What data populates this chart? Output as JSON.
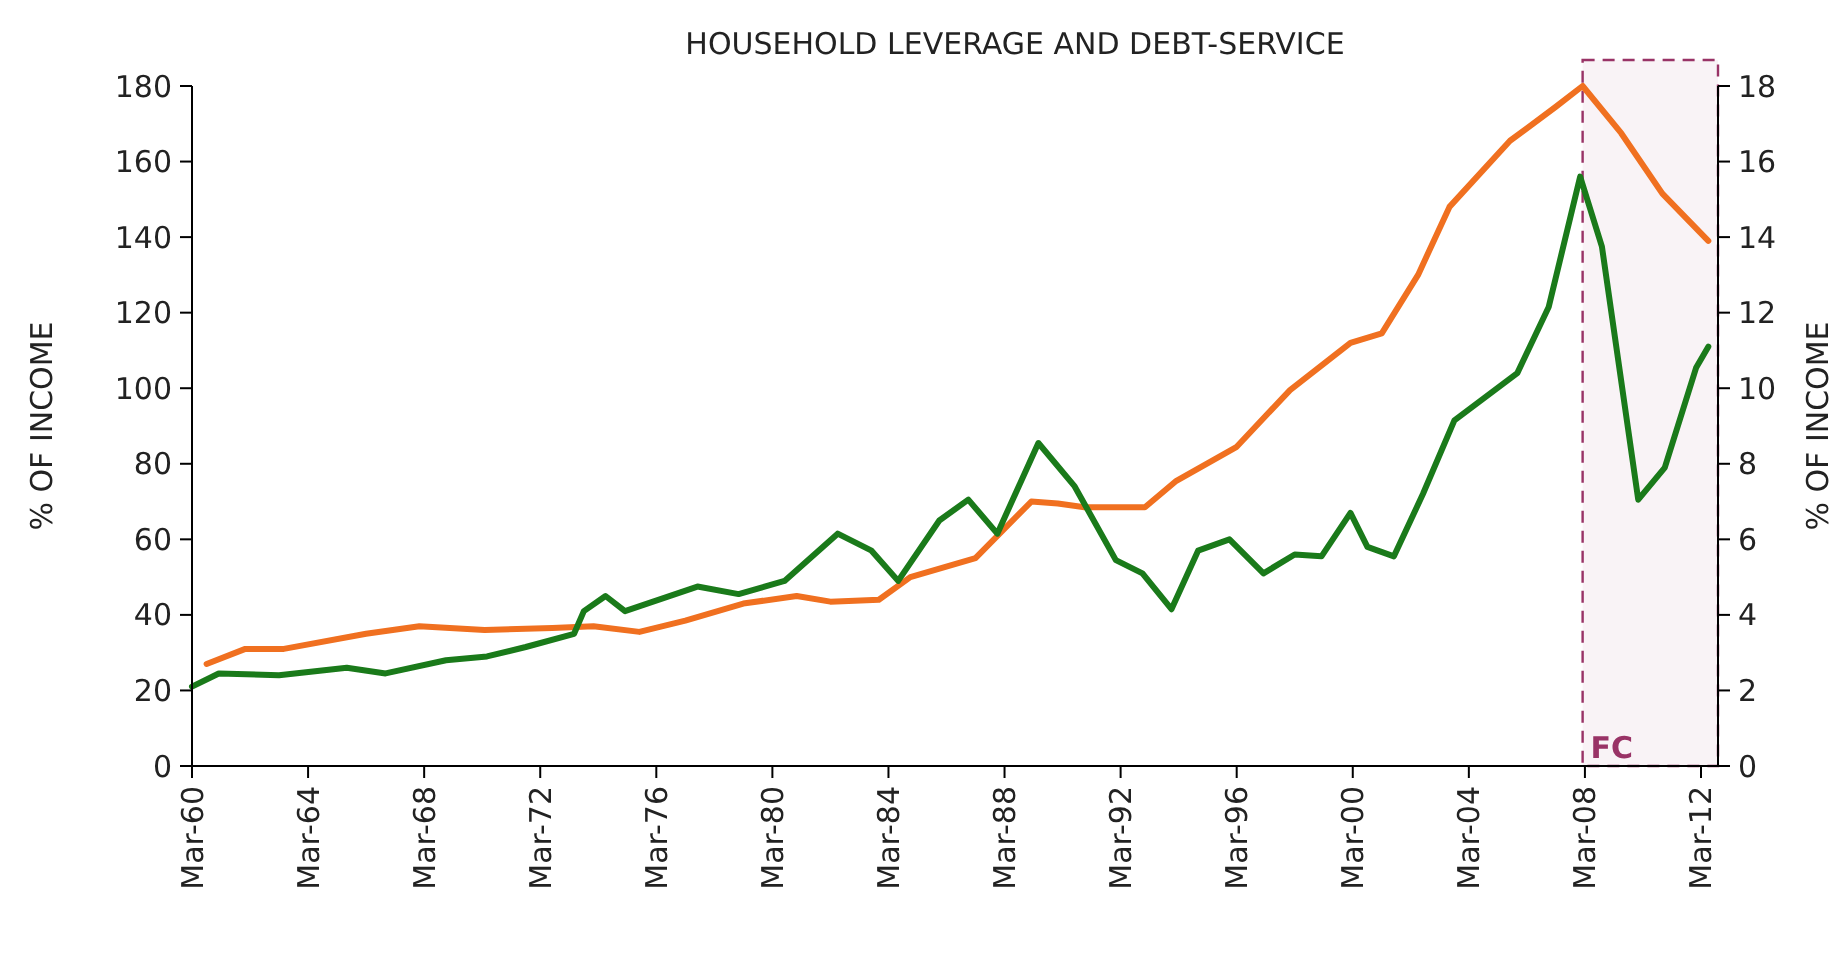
{
  "chart_data": {
    "type": "line",
    "title": "HOUSEHOLD LEVERAGE AND DEBT-SERVICE",
    "ylabel": "% OF INCOME",
    "y2label": "% OF INCOME",
    "xlim": [
      "1960-03",
      "2012-10"
    ],
    "xticks": [
      {
        "value": "1960-03",
        "label": "Mar-60"
      },
      {
        "value": "1964-03",
        "label": "Mar-64"
      },
      {
        "value": "1968-03",
        "label": "Mar-68"
      },
      {
        "value": "1972-03",
        "label": "Mar-72"
      },
      {
        "value": "1976-03",
        "label": "Mar-76"
      },
      {
        "value": "1980-03",
        "label": "Mar-80"
      },
      {
        "value": "1984-03",
        "label": "Mar-84"
      },
      {
        "value": "1988-03",
        "label": "Mar-88"
      },
      {
        "value": "1992-03",
        "label": "Mar-92"
      },
      {
        "value": "1996-03",
        "label": "Mar-96"
      },
      {
        "value": "2000-03",
        "label": "Mar-00"
      },
      {
        "value": "2004-03",
        "label": "Mar-04"
      },
      {
        "value": "2008-03",
        "label": "Mar-08"
      },
      {
        "value": "2012-03",
        "label": "Mar-12"
      }
    ],
    "ylim": [
      0,
      180
    ],
    "yticks": [
      0,
      20,
      40,
      60,
      80,
      100,
      120,
      140,
      160,
      180
    ],
    "y2lim": [
      0,
      18
    ],
    "y2ticks": [
      0,
      2,
      4,
      6,
      8,
      10,
      12,
      14,
      16,
      18
    ],
    "grid": false,
    "line_style": "solid",
    "marker": "none",
    "bands": [
      {
        "axis": "x",
        "from": "2008-02",
        "to": "2012-10",
        "label": "FC",
        "color": "#993366"
      }
    ],
    "series": [
      {
        "color": "#f07020",
        "x": [
          "1960-09",
          "1962-01",
          "1963-05",
          "1966-03",
          "1968-01",
          "1970-04",
          "1972-08",
          "1974-01",
          "1975-08",
          "1977-03",
          "1979-03",
          "1981-01",
          "1982-03",
          "1983-11",
          "1984-12",
          "1987-03",
          "1989-02",
          "1990-01",
          "1990-12",
          "1993-01",
          "1994-02",
          "1996-03",
          "1998-01",
          "2000-02",
          "2001-03",
          "2002-06",
          "2003-07",
          "2005-08",
          "2007-03",
          "2008-02",
          "2009-06",
          "2010-11",
          "2012-06"
        ],
        "values": [
          27,
          31,
          31,
          35,
          37,
          36,
          36.5,
          37,
          35.5,
          38.5,
          43,
          45,
          43.5,
          44,
          50,
          55,
          70,
          69.5,
          68.5,
          68.5,
          75.5,
          84.5,
          99.5,
          112,
          114.5,
          130,
          148,
          165.5,
          174.5,
          180,
          167.5,
          151.5,
          139
        ]
      },
      {
        "color": "#1a7a1a",
        "axis": "y2",
        "x": [
          "1960-03",
          "1961-02",
          "1963-03",
          "1965-07",
          "1966-11",
          "1968-12",
          "1970-05",
          "1971-09",
          "1973-05",
          "1973-09",
          "1974-06",
          "1975-02",
          "1977-08",
          "1979-01",
          "1980-08",
          "1982-06",
          "1983-08",
          "1984-07",
          "1985-12",
          "1986-12",
          "1987-12",
          "1989-05",
          "1990-08",
          "1992-01",
          "1992-12",
          "1993-12",
          "1994-11",
          "1995-12",
          "1997-02",
          "1998-03",
          "1999-02",
          "2000-02",
          "2000-09",
          "2001-08",
          "2002-08",
          "2003-09",
          "2005-11",
          "2006-12",
          "2008-01",
          "2008-10",
          "2010-01",
          "2010-12",
          "2012-01",
          "2012-06"
        ],
        "values": [
          2.1,
          2.45,
          2.4,
          2.6,
          2.45,
          2.8,
          2.9,
          3.15,
          3.5,
          4.1,
          4.5,
          4.1,
          4.75,
          4.55,
          4.9,
          6.15,
          5.7,
          4.9,
          6.5,
          7.05,
          6.15,
          8.55,
          7.4,
          5.45,
          5.1,
          4.15,
          5.7,
          6.0,
          5.1,
          5.6,
          5.55,
          6.7,
          5.8,
          5.55,
          7.2,
          9.15,
          10.4,
          12.15,
          15.6,
          13.75,
          7.05,
          7.9,
          10.55,
          11.1
        ]
      }
    ]
  }
}
